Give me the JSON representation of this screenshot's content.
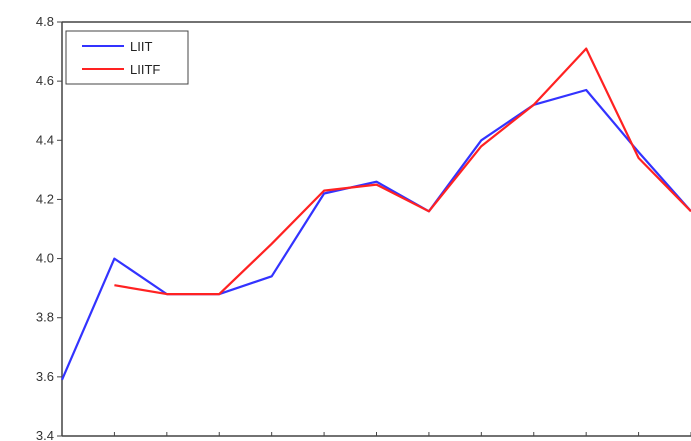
{
  "chart_data": {
    "type": "line",
    "title": "",
    "xlabel": "",
    "ylabel": "",
    "ylim": [
      3.4,
      4.8
    ],
    "yticks": [
      "3.4",
      "3.6",
      "3.8",
      "4.0",
      "4.2",
      "4.4",
      "4.6",
      "4.8"
    ],
    "grid": false,
    "legend": "top-left",
    "x": [
      0,
      1,
      2,
      3,
      4,
      5,
      6,
      7,
      8,
      9,
      10,
      11,
      12
    ],
    "series": [
      {
        "name": "LIIT",
        "color": "#3333ff",
        "values": [
          3.59,
          4.0,
          3.88,
          3.88,
          3.94,
          4.22,
          4.26,
          4.16,
          4.4,
          4.52,
          4.57,
          4.36,
          4.16
        ]
      },
      {
        "name": "LIITF",
        "color": "#ff2222",
        "values": [
          null,
          3.91,
          3.88,
          3.88,
          4.05,
          4.23,
          4.25,
          4.16,
          4.38,
          4.52,
          4.71,
          4.34,
          4.16
        ]
      }
    ]
  }
}
